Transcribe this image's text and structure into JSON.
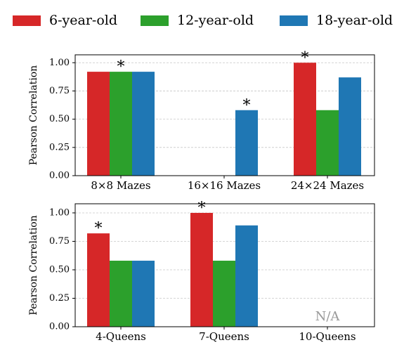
{
  "chart_data": [
    {
      "type": "bar",
      "legend": "top",
      "grid": true,
      "ylabel": "Pearson Correlation",
      "categories": [
        "8×8 Mazes",
        "16×16 Mazes",
        "24×24 Mazes"
      ],
      "series": [
        {
          "name": "6-year-old",
          "color": "#d62728",
          "values": [
            0.92,
            null,
            1.0
          ]
        },
        {
          "name": "12-year-old",
          "color": "#2ca02c",
          "values": [
            0.92,
            null,
            0.58
          ]
        },
        {
          "name": "18-year-old",
          "color": "#1f77b4",
          "values": [
            0.92,
            0.58,
            0.87
          ]
        }
      ],
      "ylim": [
        0,
        1.07
      ],
      "yticks": [
        {
          "value": 0,
          "label": "0.00"
        },
        {
          "value": 0.25,
          "label": "0.25"
        },
        {
          "value": 0.5,
          "label": "0.50"
        },
        {
          "value": 0.75,
          "label": "0.75"
        },
        {
          "value": 1,
          "label": "1.00"
        }
      ],
      "annotations": [
        {
          "text": "*",
          "category": 0,
          "series": 1
        },
        {
          "text": "*",
          "category": 1,
          "series": 2
        },
        {
          "text": "*",
          "category": 2,
          "series": 0
        }
      ]
    },
    {
      "type": "bar",
      "grid": true,
      "ylabel": "Pearson Correlation",
      "categories": [
        "4-Queens",
        "7-Queens",
        "10-Queens"
      ],
      "series": [
        {
          "name": "6-year-old",
          "color": "#d62728",
          "values": [
            0.82,
            1.0,
            null
          ]
        },
        {
          "name": "12-year-old",
          "color": "#2ca02c",
          "values": [
            0.58,
            0.58,
            null
          ]
        },
        {
          "name": "18-year-old",
          "color": "#1f77b4",
          "values": [
            0.58,
            0.89,
            null
          ]
        }
      ],
      "ylim": [
        0,
        1.08
      ],
      "yticks": [
        {
          "value": 0,
          "label": "0.00"
        },
        {
          "value": 0.25,
          "label": "0.25"
        },
        {
          "value": 0.5,
          "label": "0.50"
        },
        {
          "value": 0.75,
          "label": "0.75"
        },
        {
          "value": 1,
          "label": "1.00"
        }
      ],
      "annotations": [
        {
          "text": "*",
          "category": 0,
          "series": 0
        },
        {
          "text": "*",
          "category": 1,
          "series": 0
        },
        {
          "text": "N/A",
          "category": 2
        }
      ]
    }
  ]
}
